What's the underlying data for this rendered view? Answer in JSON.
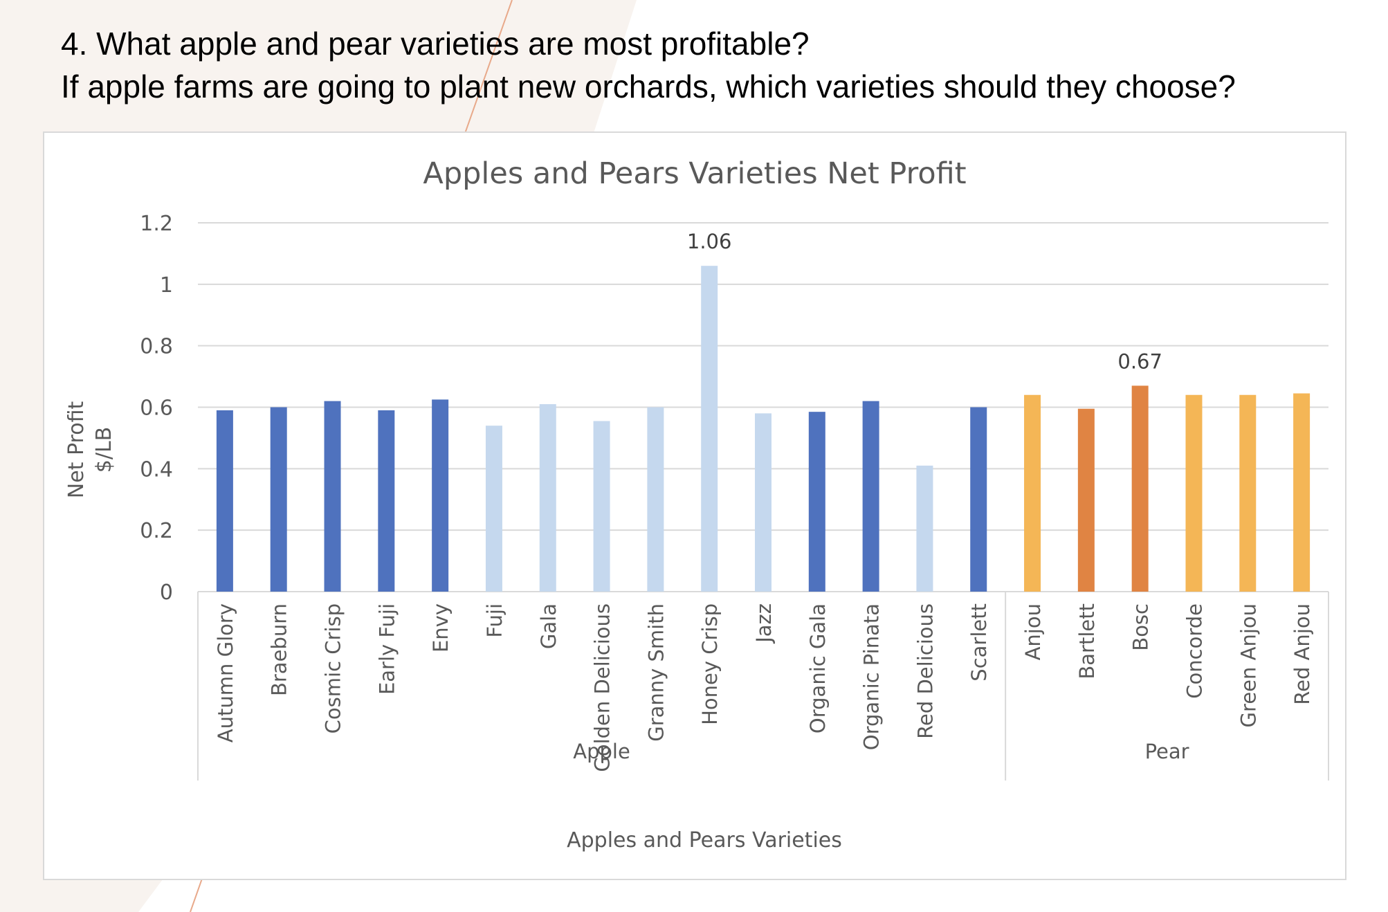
{
  "slide": {
    "question_line1": "4. What apple and pear varieties are most profitable?",
    "question_line2": "If apple farms are going to plant new orchards, which varieties should they choose?"
  },
  "chart_data": {
    "type": "bar",
    "title": "Apples and Pears Varieties Net Profit",
    "xlabel": "Apples and Pears Varieties",
    "ylabel_lines": [
      "Net Profit",
      "$/LB"
    ],
    "ylim": [
      0,
      1.2
    ],
    "yticks": [
      "0",
      "0.2",
      "0.4",
      "0.6",
      "0.8",
      "1",
      "1.2"
    ],
    "grid": true,
    "legend": "none",
    "groups": [
      {
        "label": "Apple",
        "count": 15
      },
      {
        "label": "Pear",
        "count": 6
      }
    ],
    "categories": [
      "Autumn Glory",
      "Braeburn",
      "Cosmic Crisp",
      "Early Fuji",
      "Envy",
      "Fuji",
      "Gala",
      "Golden Delicious",
      "Granny Smith",
      "Honey Crisp",
      "Jazz",
      "Organic Gala",
      "Organic Pinata",
      "Red Delicious",
      "Scarlett",
      "Anjou",
      "Bartlett",
      "Bosc",
      "Concorde",
      "Green Anjou",
      "Red Anjou"
    ],
    "values": [
      0.59,
      0.6,
      0.62,
      0.59,
      0.625,
      0.54,
      0.61,
      0.555,
      0.6,
      1.06,
      0.58,
      0.585,
      0.62,
      0.41,
      0.6,
      0.64,
      0.595,
      0.67,
      0.64,
      0.64,
      0.645
    ],
    "bar_colors": [
      "#4f72be",
      "#4f72be",
      "#4f72be",
      "#4f72be",
      "#4f72be",
      "#c5d8ee",
      "#c5d8ee",
      "#c5d8ee",
      "#c5d8ee",
      "#c5d8ee",
      "#c5d8ee",
      "#4f72be",
      "#4f72be",
      "#c5d8ee",
      "#4f72be",
      "#f4b656",
      "#e08443",
      "#e08443",
      "#f4b656",
      "#f4b656",
      "#f4b656"
    ],
    "data_labels": [
      {
        "category": "Honey Crisp",
        "text": "1.06"
      },
      {
        "category": "Bosc",
        "text": "0.67"
      }
    ]
  }
}
